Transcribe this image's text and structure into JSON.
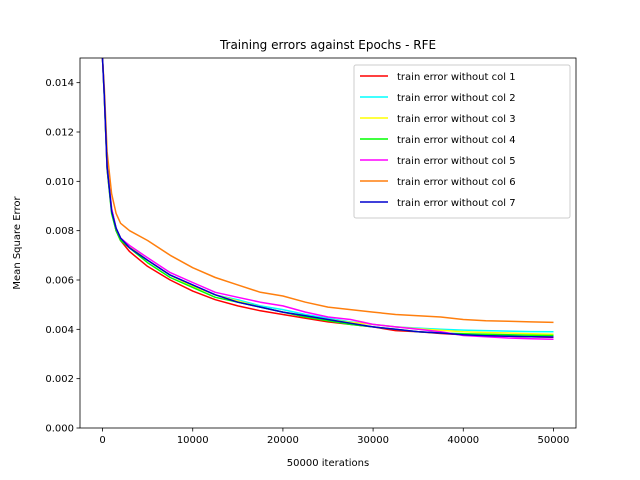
{
  "chart_data": {
    "type": "line",
    "title": "Training errors against Epochs - RFE",
    "xlabel": "50000 iterations",
    "ylabel": "Mean Square Error",
    "xlim": [
      -2500,
      52500
    ],
    "ylim": [
      0,
      0.015
    ],
    "xticks": [
      0,
      10000,
      20000,
      30000,
      40000,
      50000
    ],
    "yticks": [
      0.0,
      0.002,
      0.004,
      0.006,
      0.008,
      0.01,
      0.012,
      0.014
    ],
    "ytick_labels": [
      "0.000",
      "0.002",
      "0.004",
      "0.006",
      "0.008",
      "0.010",
      "0.012",
      "0.014"
    ],
    "grid": false,
    "legend_position": "top-right",
    "x": [
      0,
      200,
      500,
      1000,
      1500,
      2000,
      3000,
      5000,
      7500,
      10000,
      12500,
      15000,
      17500,
      20000,
      22500,
      25000,
      27500,
      30000,
      32500,
      35000,
      37500,
      40000,
      42500,
      45000,
      47500,
      50000
    ],
    "series": [
      {
        "name": "train error without col 1",
        "color": "#ff0000",
        "values": [
          0.015,
          0.0135,
          0.0105,
          0.0088,
          0.008,
          0.0076,
          0.00715,
          0.00655,
          0.006,
          0.00555,
          0.0052,
          0.00495,
          0.00475,
          0.0046,
          0.00445,
          0.0043,
          0.0042,
          0.0041,
          0.00395,
          0.0039,
          0.00383,
          0.00378,
          0.00375,
          0.00372,
          0.0037,
          0.00368
        ]
      },
      {
        "name": "train error without col 2",
        "color": "#00ffff",
        "values": [
          0.015,
          0.0135,
          0.0106,
          0.0089,
          0.0081,
          0.0077,
          0.00735,
          0.0068,
          0.0062,
          0.0058,
          0.0054,
          0.0052,
          0.00495,
          0.0048,
          0.0046,
          0.00445,
          0.0043,
          0.0042,
          0.0041,
          0.00405,
          0.004,
          0.00397,
          0.00395,
          0.00393,
          0.00391,
          0.0039
        ]
      },
      {
        "name": "train error without col 3",
        "color": "#ffff00",
        "values": [
          0.015,
          0.0135,
          0.0106,
          0.0089,
          0.0081,
          0.0077,
          0.00735,
          0.0068,
          0.0062,
          0.00575,
          0.0054,
          0.00515,
          0.0049,
          0.0047,
          0.00455,
          0.0044,
          0.00428,
          0.0042,
          0.0041,
          0.00402,
          0.00396,
          0.0039,
          0.00387,
          0.00385,
          0.00382,
          0.0038
        ]
      },
      {
        "name": "train error without col 4",
        "color": "#00ff00",
        "values": [
          0.015,
          0.0134,
          0.0105,
          0.0087,
          0.008,
          0.0076,
          0.0073,
          0.0067,
          0.0061,
          0.0057,
          0.0053,
          0.0051,
          0.0049,
          0.0047,
          0.0045,
          0.00435,
          0.0042,
          0.0041,
          0.004,
          0.0039,
          0.00385,
          0.00382,
          0.0038,
          0.00378,
          0.00376,
          0.00375
        ]
      },
      {
        "name": "train error without col 5",
        "color": "#ff00ff",
        "values": [
          0.015,
          0.0135,
          0.0106,
          0.0089,
          0.0081,
          0.0077,
          0.0074,
          0.0069,
          0.0063,
          0.0059,
          0.0055,
          0.0053,
          0.0051,
          0.00495,
          0.0047,
          0.0045,
          0.0044,
          0.0042,
          0.0041,
          0.004,
          0.0039,
          0.00375,
          0.0037,
          0.00365,
          0.00362,
          0.0036
        ]
      },
      {
        "name": "train error without col 6",
        "color": "#ff7f0e",
        "values": [
          0.015,
          0.0138,
          0.0112,
          0.0095,
          0.0087,
          0.0083,
          0.008,
          0.0076,
          0.007,
          0.0065,
          0.0061,
          0.0058,
          0.0055,
          0.00535,
          0.0051,
          0.0049,
          0.0048,
          0.0047,
          0.0046,
          0.00455,
          0.0045,
          0.0044,
          0.00435,
          0.00433,
          0.0043,
          0.00428
        ]
      },
      {
        "name": "train error without col 7",
        "color": "#0000cd",
        "values": [
          0.015,
          0.0135,
          0.0106,
          0.0088,
          0.0081,
          0.0077,
          0.0073,
          0.0068,
          0.0062,
          0.0058,
          0.0054,
          0.0051,
          0.0049,
          0.0047,
          0.00455,
          0.0044,
          0.00425,
          0.0041,
          0.004,
          0.0039,
          0.00385,
          0.00378,
          0.00374,
          0.00372,
          0.0037,
          0.00369
        ]
      }
    ]
  }
}
